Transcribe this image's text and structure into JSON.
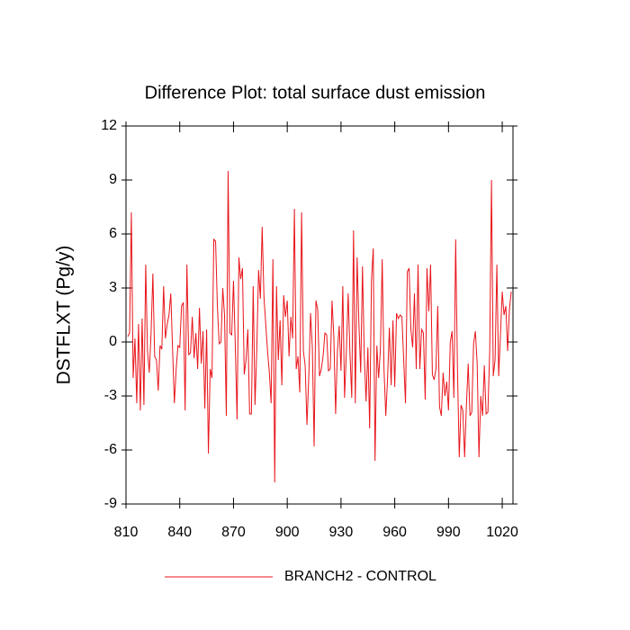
{
  "chart_data": {
    "type": "line",
    "title": "Difference Plot: total surface dust emission",
    "y_label": "DSTFLXT  (Pg/y)",
    "x": [
      811,
      812,
      813,
      814,
      815,
      816,
      817,
      818,
      819,
      820,
      821,
      822,
      823,
      824,
      825,
      826,
      827,
      828,
      829,
      830,
      831,
      832,
      833,
      834,
      835,
      836,
      837,
      838,
      839,
      840,
      841,
      842,
      843,
      844,
      845,
      846,
      847,
      848,
      849,
      850,
      851,
      852,
      853,
      854,
      855,
      856,
      857,
      858,
      859,
      860,
      861,
      862,
      863,
      864,
      865,
      866,
      867,
      868,
      869,
      870,
      871,
      872,
      873,
      874,
      875,
      876,
      877,
      878,
      879,
      880,
      881,
      882,
      883,
      884,
      885,
      886,
      887,
      888,
      889,
      890,
      891,
      892,
      893,
      894,
      895,
      896,
      897,
      898,
      899,
      900,
      901,
      902,
      903,
      904,
      905,
      906,
      907,
      908,
      909,
      910,
      911,
      912,
      913,
      914,
      915,
      916,
      917,
      918,
      919,
      920,
      921,
      922,
      923,
      924,
      925,
      926,
      927,
      928,
      929,
      930,
      931,
      932,
      933,
      934,
      935,
      936,
      937,
      938,
      939,
      940,
      941,
      942,
      943,
      944,
      945,
      946,
      947,
      948,
      949,
      950,
      951,
      952,
      953,
      954,
      955,
      956,
      957,
      958,
      959,
      960,
      961,
      962,
      963,
      964,
      965,
      966,
      967,
      968,
      969,
      970,
      971,
      972,
      973,
      974,
      975,
      976,
      977,
      978,
      979,
      980,
      981,
      982,
      983,
      984,
      985,
      986,
      987,
      988,
      989,
      990,
      991,
      992,
      993,
      994,
      995,
      996,
      997,
      998,
      999,
      1000,
      1001,
      1002,
      1003,
      1004,
      1005,
      1006,
      1007,
      1008,
      1009,
      1010,
      1011,
      1012,
      1013,
      1014,
      1015,
      1016,
      1017,
      1018,
      1019,
      1020,
      1021,
      1022,
      1023,
      1024,
      1025
    ],
    "series": [
      {
        "name": "BRANCH2 - CONTROL",
        "color": "#e8151b",
        "values": [
          0.3,
          0.5,
          7.2,
          -2.0,
          0.2,
          -3.4,
          1.0,
          -3.8,
          1.3,
          -3.5,
          4.3,
          -0.5,
          -1.7,
          0.5,
          3.8,
          -0.8,
          -1.0,
          -2.7,
          -0.2,
          -0.4,
          3.1,
          0.2,
          1.0,
          1.5,
          2.7,
          -0.4,
          -3.4,
          -1.5,
          -0.2,
          -0.3,
          2.0,
          2.2,
          -3.8,
          4.3,
          -0.7,
          -0.6,
          1.4,
          -0.9,
          0.5,
          -1.5,
          1.9,
          -1.2,
          0.6,
          -3.7,
          0.7,
          -6.2,
          -1.5,
          -2.0,
          5.7,
          5.6,
          2.0,
          -0.1,
          0.0,
          3.0,
          1.5,
          -4.1,
          9.5,
          0.5,
          0.4,
          3.4,
          -0.2,
          -4.3,
          4.7,
          3.5,
          4.1,
          -1.8,
          -1.0,
          0.7,
          -4.0,
          -4.0,
          3.1,
          -3.5,
          -0.4,
          4.0,
          2.4,
          6.4,
          2.5,
          1.0,
          -0.5,
          -1.7,
          -3.4,
          4.6,
          -7.8,
          3.1,
          -1.0,
          1.2,
          -2.4,
          2.6,
          1.4,
          2.3,
          -0.8,
          1.4,
          0.2,
          7.4,
          -1.5,
          -0.8,
          -2.8,
          7.2,
          -0.5,
          -1.3,
          -4.6,
          -2.0,
          1.6,
          -0.3,
          -5.8,
          2.3,
          1.8,
          -1.9,
          -1.5,
          -0.8,
          0.5,
          0.4,
          -1.6,
          -1.5,
          2.3,
          0.3,
          -4.0,
          -0.5,
          0.9,
          -1.6,
          3.1,
          -3.1,
          -0.5,
          2.7,
          -0.6,
          -3.1,
          6.2,
          -3.4,
          4.7,
          1.0,
          -1.7,
          4.2,
          -0.8,
          -3.3,
          -0.3,
          -4.8,
          3.4,
          5.2,
          -6.6,
          -0.2,
          -2.0,
          -0.4,
          4.6,
          -1.5,
          -4.1,
          -2.0,
          0.8,
          -2.4,
          1.2,
          -2.5,
          1.6,
          1.3,
          1.5,
          1.4,
          -1.0,
          -3.4,
          3.9,
          4.1,
          0.7,
          -0.3,
          2.7,
          -1.5,
          4.3,
          -1.5,
          0.7,
          0.5,
          -3.2,
          4.1,
          1.7,
          4.3,
          -1.8,
          -2.1,
          -1.5,
          2.0,
          -3.6,
          -4.1,
          -1.7,
          -3.0,
          -2.2,
          -3.8,
          0.0,
          0.6,
          -3.1,
          5.7,
          -1.5,
          -6.4,
          -3.5,
          -3.8,
          -6.4,
          -3.5,
          -1.2,
          -4.1,
          -3.9,
          -0.1,
          0.6,
          -1.2,
          -6.4,
          -3.0,
          -4.1,
          -1.3,
          -4.0,
          -3.9,
          -0.5,
          9.0,
          -1.9,
          -1.0,
          4.3,
          -1.9,
          0.4,
          2.8,
          1.5,
          2.0,
          -0.5,
          1.8,
          2.8
        ]
      }
    ],
    "xlim": [
      810,
      1026
    ],
    "xticks": [
      810,
      840,
      870,
      900,
      930,
      960,
      990,
      1020
    ],
    "ylim": [
      -9,
      12
    ],
    "yticks": [
      -9,
      -6,
      -3,
      0,
      3,
      6,
      9,
      12
    ],
    "legend": "bottom"
  }
}
